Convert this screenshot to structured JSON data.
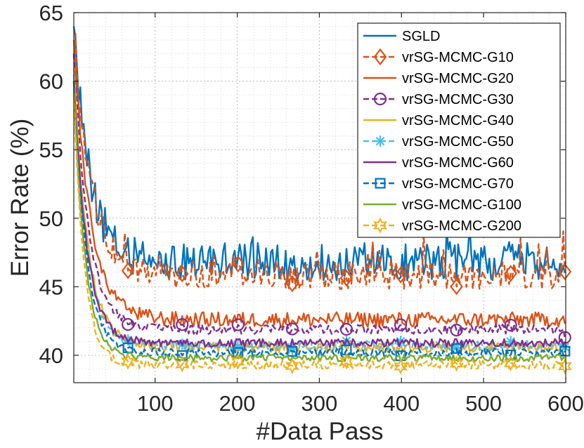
{
  "chart_data": {
    "type": "line",
    "title": "",
    "xlabel": "#Data Pass",
    "ylabel": "Error Rate (%)",
    "xlim": [
      1,
      600
    ],
    "ylim": [
      38,
      65
    ],
    "xticks": [
      100,
      200,
      300,
      400,
      500,
      600
    ],
    "yticks": [
      40,
      45,
      50,
      55,
      60,
      65
    ],
    "grid": true,
    "legend_position": "top-right",
    "series": [
      {
        "name": "SGLD",
        "color": "#0072BD",
        "marker": "none",
        "style": "solid",
        "start": 64.0,
        "floor": 46.8,
        "decay": 20,
        "noise": 1.4,
        "x": [
          1,
          600
        ],
        "end": 46.0
      },
      {
        "name": "vrSG-MCMC-G10",
        "color": "#D95319",
        "marker": "diamond",
        "style": "dashed",
        "start": 63.5,
        "floor": 45.8,
        "decay": 22,
        "noise": 1.0,
        "x": [
          1,
          600
        ],
        "end": 46.1
      },
      {
        "name": "vrSG-MCMC-G20",
        "color": "#D95319",
        "marker": "none",
        "style": "solid",
        "start": 63.0,
        "floor": 42.6,
        "decay": 20,
        "noise": 0.55,
        "x": [
          1,
          600
        ],
        "end": 42.3
      },
      {
        "name": "vrSG-MCMC-G30",
        "color": "#7E2F8E",
        "marker": "circle",
        "style": "dashed",
        "start": 62.0,
        "floor": 41.9,
        "decay": 18,
        "noise": 0.35,
        "x": [
          1,
          600
        ],
        "end": 41.3
      },
      {
        "name": "vrSG-MCMC-G40",
        "color": "#EDB120",
        "marker": "none",
        "style": "solid",
        "start": 61.0,
        "floor": 40.6,
        "decay": 17,
        "noise": 0.4,
        "x": [
          1,
          600
        ],
        "end": 40.4
      },
      {
        "name": "vrSG-MCMC-G50",
        "color": "#4DBEEE",
        "marker": "asterisk",
        "style": "dashed",
        "start": 60.5,
        "floor": 40.7,
        "decay": 16,
        "noise": 0.35,
        "x": [
          1,
          600
        ],
        "end": 40.6
      },
      {
        "name": "vrSG-MCMC-G60",
        "color": "#7E2F8E",
        "marker": "none",
        "style": "solid",
        "start": 60.0,
        "floor": 40.9,
        "decay": 16,
        "noise": 0.3,
        "x": [
          1,
          600
        ],
        "end": 41.0
      },
      {
        "name": "vrSG-MCMC-G70",
        "color": "#0072BD",
        "marker": "square",
        "style": "dashed",
        "start": 60.0,
        "floor": 40.2,
        "decay": 15,
        "noise": 0.3,
        "x": [
          1,
          600
        ],
        "end": 40.3
      },
      {
        "name": "vrSG-MCMC-G100",
        "color": "#77AC30",
        "marker": "none",
        "style": "solid",
        "start": 59.5,
        "floor": 39.8,
        "decay": 14,
        "noise": 0.25,
        "x": [
          1,
          600
        ],
        "end": 39.8
      },
      {
        "name": "vrSG-MCMC-G200",
        "color": "#EDB120",
        "marker": "hexagram",
        "style": "dashed",
        "start": 59.0,
        "floor": 39.3,
        "decay": 13,
        "noise": 0.3,
        "x": [
          1,
          600
        ],
        "end": 39.2
      }
    ]
  }
}
